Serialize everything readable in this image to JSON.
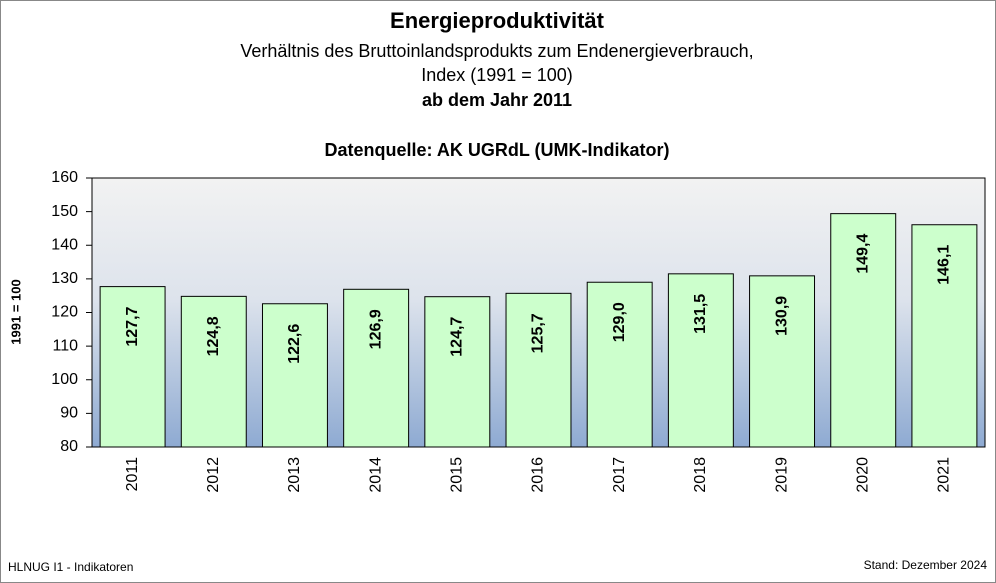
{
  "chart_data": {
    "type": "bar",
    "title": "Energieproduktivität",
    "subtitle": [
      "Verhältnis des Bruttoinlandsprodukts zum Endenergieverbrauch,",
      "Index (1991 = 100)",
      "ab dem Jahr 2011"
    ],
    "source": "Datenquelle:  AK UGRdL (UMK-Indikator)",
    "ylabel": "1991 = 100",
    "footer_left": "HLNUG I1  - Indikatoren",
    "footer_right": "Stand: Dezember 2024",
    "categories": [
      "2011",
      "2012",
      "2013",
      "2014",
      "2015",
      "2016",
      "2017",
      "2018",
      "2019",
      "2020",
      "2021"
    ],
    "values": [
      127.7,
      124.8,
      122.6,
      126.9,
      124.7,
      125.7,
      129.0,
      131.5,
      130.9,
      149.4,
      146.1
    ],
    "value_labels": [
      "127,7",
      "124,8",
      "122,6",
      "126,9",
      "124,7",
      "125,7",
      "129,0",
      "131,5",
      "130,9",
      "149,4",
      "146,1"
    ],
    "color": "#ccffcc",
    "ylim": [
      80,
      160
    ],
    "yticks": [
      80,
      90,
      100,
      110,
      120,
      130,
      140,
      150,
      160
    ],
    "grid": false
  }
}
